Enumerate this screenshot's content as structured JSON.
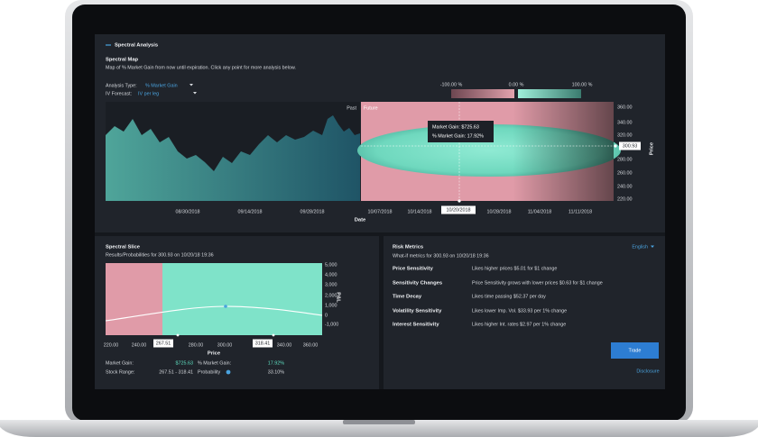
{
  "header": {
    "title": "Spectral Analysis"
  },
  "spectral_map": {
    "title": "Spectral Map",
    "description": "Map of % Market Gain from now until expiration. Click any point for more analysis below.",
    "analysis_type": {
      "label": "Analysis Type:",
      "value": "% Market Gain"
    },
    "iv_forecast": {
      "label": "IV Forecast:",
      "value": "IV per leg"
    },
    "legend": [
      "-100.00 %",
      "0.00 %",
      "100.00 %"
    ],
    "past_label": "Past",
    "future_label": "Future",
    "tooltip": [
      "Market Gain: $725.63",
      "% Market Gain: 17.92%"
    ],
    "price_ticks": [
      "360.00",
      "340.00",
      "320.00",
      "300.93",
      "280.00",
      "260.00",
      "240.00",
      "220.00"
    ],
    "price_axis_label": "Price",
    "date_ticks": [
      "08/30/2018",
      "09/14/2018",
      "09/28/2018",
      "10/07/2018",
      "10/14/2018",
      "10/20/2018",
      "10/28/2018",
      "11/04/2018",
      "11/11/2018"
    ],
    "date_axis_label": "Date"
  },
  "spectral_slice": {
    "title": "Spectral Slice",
    "subtitle": "Results/Probabilities for 300.93 on 10/20/18 19:36",
    "pl_ticks": [
      "5,000",
      "4,000",
      "3,000",
      "2,000",
      "1,000",
      "0",
      "-1,000"
    ],
    "pl_axis_label": "P&L",
    "price_ticks": [
      "220.00",
      "240.00",
      "267.51",
      "280.00",
      "300.00",
      "318.41",
      "340.00",
      "360.00"
    ],
    "price_axis_label": "Price",
    "stats": [
      {
        "label": "Market Gain:",
        "value": "$725.63"
      },
      {
        "label": "% Market Gain:",
        "value": "17.92%"
      },
      {
        "label": "Stock Range:",
        "value": "267.51 - 318.41"
      },
      {
        "label": "Probability",
        "value": "33.10%"
      }
    ]
  },
  "risk_metrics": {
    "title": "Risk Metrics",
    "subtitle": "What-if metrics for 300.93 on 10/20/18 19:36",
    "language": "English",
    "rows": [
      {
        "name": "Price Sensitivity",
        "description": "Likes higher prices $5.01 for $1 change"
      },
      {
        "name": "Sensitivity Changes",
        "description": "Price Sensitivity grows with lower prices $0.63 for $1 change"
      },
      {
        "name": "Time Decay",
        "description": "Likes time passing $52.37 per day"
      },
      {
        "name": "Volatility Sensitivity",
        "description": "Likes lower Imp. Vol. $33.93 per 1% change"
      },
      {
        "name": "Interest Sensitivity",
        "description": "Likes higher Int. rates $2.97 per 1% change"
      }
    ],
    "trade_button": "Trade",
    "disclosure": "Disclosure"
  }
}
